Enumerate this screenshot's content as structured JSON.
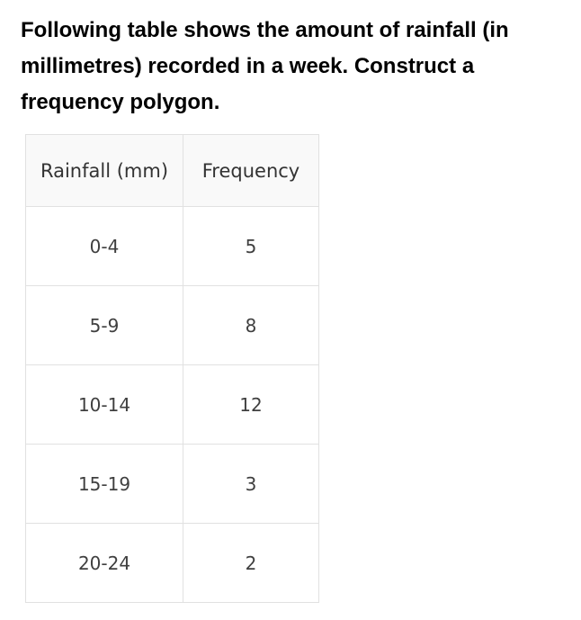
{
  "question": {
    "lines": [
      "Following table shows the amount of rainfall (in",
      "millimetres) recorded in a week. Construct a",
      "frequency polygon."
    ]
  },
  "table": {
    "headers": [
      "Rainfall (mm)",
      "Frequency"
    ],
    "rows": [
      [
        "0-4",
        "5"
      ],
      [
        "5-9",
        "8"
      ],
      [
        "10-14",
        "12"
      ],
      [
        "15-19",
        "3"
      ],
      [
        "20-24",
        "2"
      ]
    ]
  }
}
